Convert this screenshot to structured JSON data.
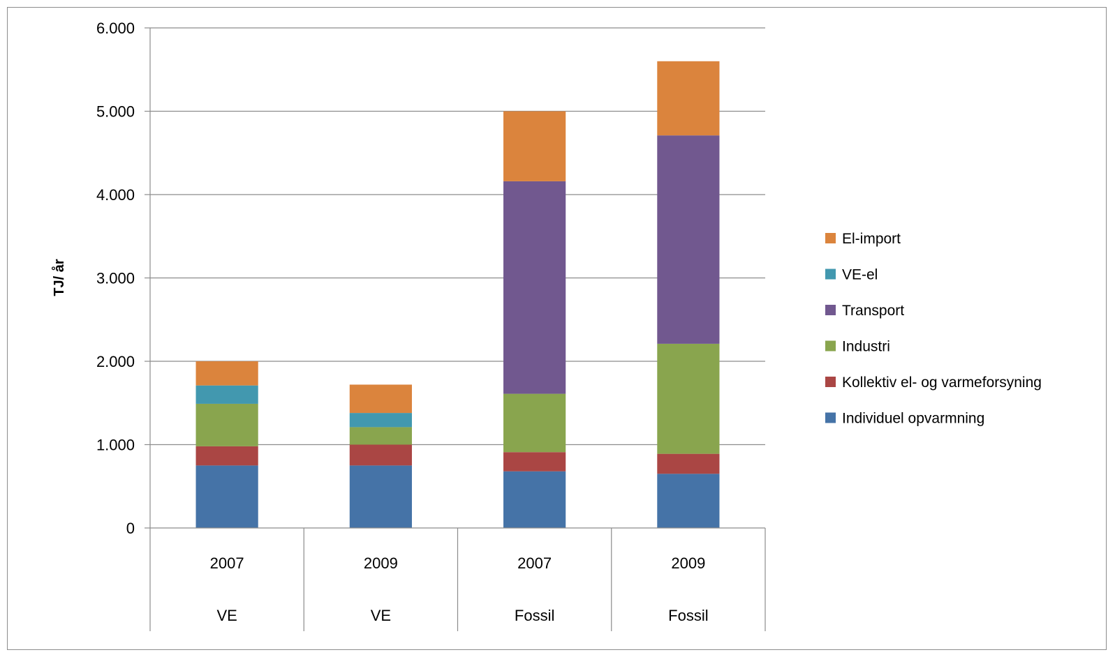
{
  "chart_data": {
    "type": "bar",
    "stacked": true,
    "ylabel": "TJ/ år",
    "ylim": [
      0,
      6000
    ],
    "yticks": [
      0,
      1000,
      2000,
      3000,
      4000,
      5000,
      6000
    ],
    "ytick_labels": [
      "0",
      "1.000",
      "2.000",
      "3.000",
      "4.000",
      "5.000",
      "6.000"
    ],
    "categories": [
      {
        "year": "2007",
        "group": "VE"
      },
      {
        "year": "2009",
        "group": "VE"
      },
      {
        "year": "2007",
        "group": "Fossil"
      },
      {
        "year": "2009",
        "group": "Fossil"
      }
    ],
    "series": [
      {
        "name": "Individuel opvarmning",
        "color": "#4573a7",
        "values": [
          750,
          750,
          680,
          650
        ]
      },
      {
        "name": "Kollektiv el- og varmeforsyning",
        "color": "#aa4644",
        "values": [
          230,
          250,
          230,
          240
        ]
      },
      {
        "name": "Industri",
        "color": "#89a54e",
        "values": [
          510,
          210,
          700,
          1320
        ]
      },
      {
        "name": "Transport",
        "color": "#71588f",
        "values": [
          0,
          0,
          2550,
          2500
        ]
      },
      {
        "name": "VE-el",
        "color": "#4298af",
        "values": [
          220,
          170,
          0,
          0
        ]
      },
      {
        "name": "El-import",
        "color": "#db843d",
        "values": [
          290,
          340,
          840,
          890
        ]
      }
    ],
    "grid": true,
    "legend_position": "right"
  }
}
